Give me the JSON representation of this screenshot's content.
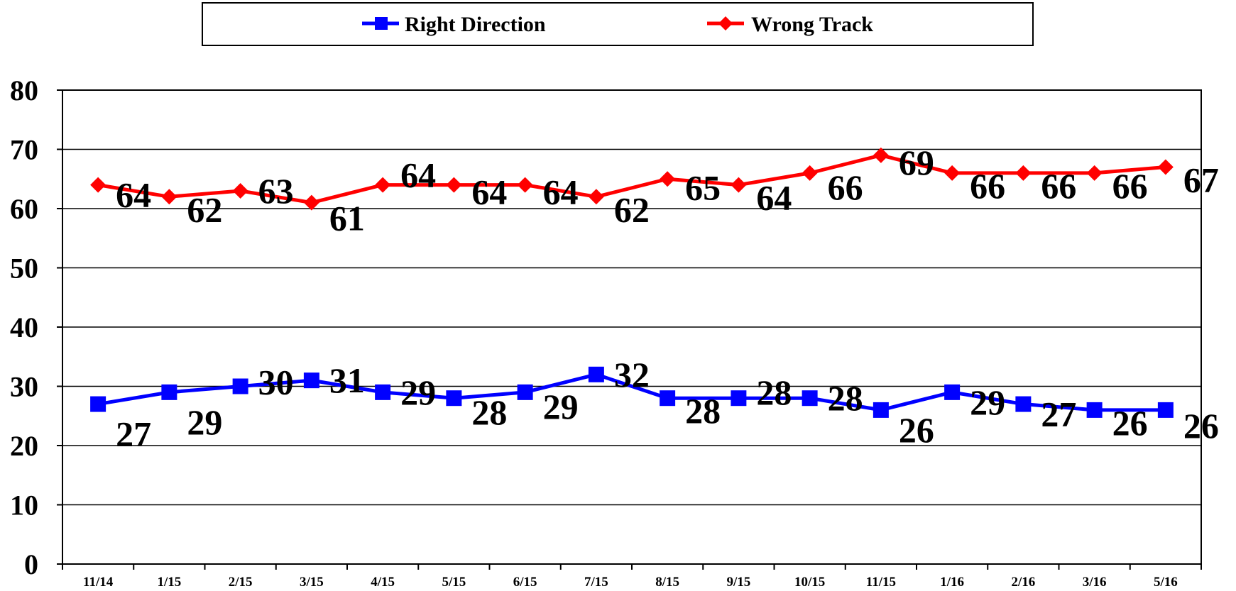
{
  "chart_data": {
    "type": "line",
    "categories": [
      "11/14",
      "1/15",
      "2/15",
      "3/15",
      "4/15",
      "5/15",
      "6/15",
      "7/15",
      "8/15",
      "9/15",
      "10/15",
      "11/15",
      "1/16",
      "2/16",
      "3/16",
      "5/16"
    ],
    "y_ticks": [
      "0",
      "10",
      "20",
      "30",
      "40",
      "50",
      "60",
      "70",
      "80"
    ],
    "ylim": [
      0,
      80
    ],
    "grid": "horizontal",
    "legend_position": "top-center",
    "series": [
      {
        "name": "Right Direction",
        "color": "#0000ff",
        "marker": "square",
        "values": [
          27,
          29,
          30,
          31,
          29,
          28,
          29,
          32,
          28,
          28,
          28,
          26,
          29,
          27,
          26,
          26
        ],
        "labels": [
          "27",
          "29",
          "30",
          "31",
          "29",
          "28",
          "29",
          "32",
          "28",
          "28",
          "28",
          "26",
          "29",
          "27",
          "26",
          "26"
        ]
      },
      {
        "name": "Wrong Track",
        "color": "#ff0000",
        "marker": "diamond",
        "values": [
          64,
          62,
          63,
          61,
          64,
          64,
          64,
          62,
          65,
          64,
          66,
          69,
          66,
          66,
          66,
          67
        ],
        "labels": [
          "64",
          "62",
          "63",
          "61",
          "64",
          "64",
          "64",
          "62",
          "65",
          "64",
          "66",
          "69",
          "66",
          "66",
          "66",
          "67"
        ]
      }
    ]
  }
}
